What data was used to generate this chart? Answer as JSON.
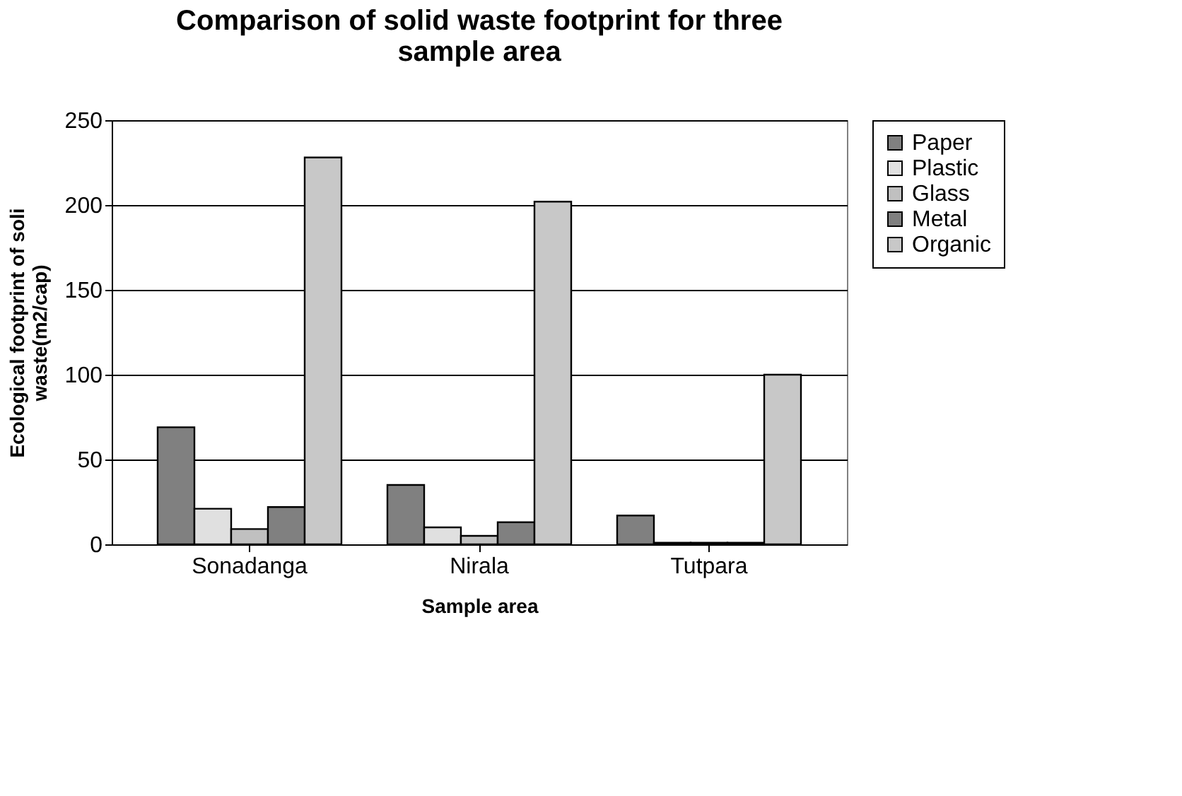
{
  "chart_data": {
    "type": "bar",
    "title": [
      "Comparison of solid waste footprint for three",
      "sample area"
    ],
    "xlabel": "Sample area",
    "ylabel": [
      "Ecological footprint of soli",
      "waste(m2/cap)"
    ],
    "categories": [
      "Sonadanga",
      "Nirala",
      "Tutpara"
    ],
    "series": [
      {
        "name": "Paper",
        "color": "#808080",
        "values": [
          69,
          35,
          17
        ]
      },
      {
        "name": "Plastic",
        "color": "#e0e0e0",
        "values": [
          21,
          10,
          1
        ]
      },
      {
        "name": "Glass",
        "color": "#c0c0c0",
        "values": [
          9,
          5,
          1
        ]
      },
      {
        "name": "Metal",
        "color": "#808080",
        "values": [
          22,
          13,
          1
        ]
      },
      {
        "name": "Organic",
        "color": "#c8c8c8",
        "values": [
          228,
          202,
          100
        ]
      }
    ],
    "ylim": [
      0,
      250
    ],
    "yticks": [
      0,
      50,
      100,
      150,
      200,
      250
    ],
    "grid": "y",
    "legend": "right"
  }
}
